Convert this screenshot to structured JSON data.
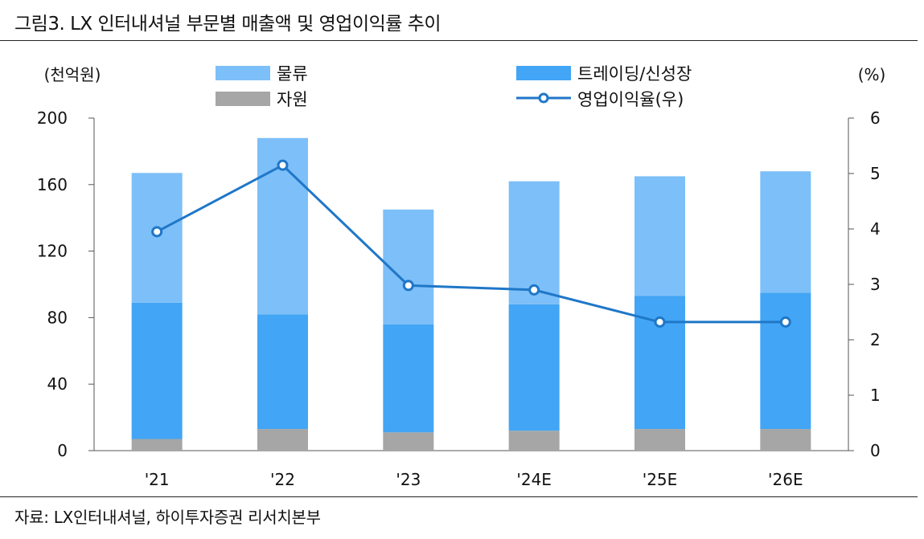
{
  "title": "그림3. LX 인터내셔널 부문별 매출액 및 영업이익률 추이",
  "source": "자료: LX인터내셔널, 하이투자증권 리서치본부",
  "chart_data": {
    "type": "bar",
    "stacked": true,
    "categories": [
      "'21",
      "'22",
      "'23",
      "'24E",
      "'25E",
      "'26E"
    ],
    "series": [
      {
        "name": "자원",
        "color": "#a6a6a6",
        "values": [
          7,
          13,
          11,
          12,
          13,
          13
        ]
      },
      {
        "name": "트레이딩/신성장",
        "color": "#42a5f5",
        "values": [
          82,
          69,
          65,
          76,
          80,
          82
        ]
      },
      {
        "name": "물류",
        "color": "#7dbff8",
        "values": [
          78,
          106,
          69,
          74,
          72,
          73
        ]
      }
    ],
    "line_series": {
      "name": "영업이익율(우)",
      "color": "#1f77c8",
      "values": [
        3.95,
        5.15,
        2.98,
        2.9,
        2.32,
        2.32
      ]
    },
    "ylabel_left": "(천억원)",
    "ylabel_right": "(%)",
    "ylim_left": [
      0,
      200
    ],
    "ylim_right": [
      0,
      6
    ],
    "yticks_left": [
      "0",
      "40",
      "80",
      "120",
      "160",
      "200"
    ],
    "yticks_right": [
      "0",
      "1",
      "2",
      "3",
      "4",
      "5",
      "6"
    ],
    "legend": {
      "logistics": "물류",
      "trading": "트레이딩/신성장",
      "resources": "자원",
      "margin": "영업이익율(우)"
    }
  }
}
